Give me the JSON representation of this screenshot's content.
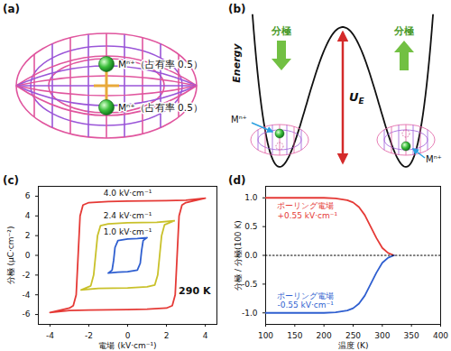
{
  "diagrams": [
    {
      "label": "(a)",
      "ion_labels": [
        "Mⁿ⁺（占有率 0.5）",
        "Mⁿ⁺（占有率 0.5）"
      ]
    },
    {
      "label": "(b)",
      "y_label": "Energy",
      "arrow_labels": [
        "分極",
        "分極"
      ],
      "barrier_label": "U",
      "barrier_subscript": "E",
      "ion_labels": [
        "Mⁿ⁺",
        "Mⁿ⁺"
      ]
    }
  ],
  "chart_data": [
    {
      "label": "(c)",
      "type": "line",
      "x_label": "電場 (kV·cm⁻¹)",
      "y_label": "分極 (μC·cm⁻²)",
      "xlim": [
        -4.6,
        4.6
      ],
      "ylim": [
        -7,
        7
      ],
      "xticks": [
        -4,
        -2,
        0,
        2,
        4
      ],
      "yticks": [
        -6,
        -4,
        -2,
        0,
        2,
        4,
        6
      ],
      "series": [
        {
          "name": "4.0 kV·cm⁻¹",
          "color": "#e53a36",
          "label_at": [
            0,
            6.3
          ],
          "x": [
            4,
            3,
            2,
            0,
            -1,
            -2,
            -2.3,
            -2.45,
            -2.55,
            -2.65,
            -2.8,
            -3,
            -4,
            -3,
            -2,
            0,
            1,
            2,
            2.3,
            2.45,
            2.55,
            2.65,
            2.8,
            3,
            4
          ],
          "values": [
            5.8,
            5.6,
            5.55,
            5.5,
            5.45,
            5.35,
            5.1,
            4.0,
            0,
            -4.0,
            -5.1,
            -5.35,
            -5.8,
            -5.6,
            -5.55,
            -5.5,
            -5.45,
            -5.35,
            -5.1,
            -4.0,
            0,
            4.0,
            5.1,
            5.35,
            5.8
          ]
        },
        {
          "name": "2.4 kV·cm⁻¹",
          "color": "#c9c12a",
          "label_at": [
            0,
            4.1
          ],
          "x": [
            2.4,
            1.5,
            0,
            -1,
            -1.4,
            -1.55,
            -1.65,
            -1.75,
            -1.9,
            -2.4,
            -1.5,
            0,
            1,
            1.4,
            1.55,
            1.65,
            1.75,
            1.9,
            2.4
          ],
          "values": [
            3.5,
            3.35,
            3.3,
            3.2,
            3.0,
            2.0,
            0,
            -2.0,
            -3.1,
            -3.5,
            -3.35,
            -3.3,
            -3.2,
            -3.0,
            -2.0,
            0,
            2.0,
            3.1,
            3.5
          ]
        },
        {
          "name": "1.0 kV·cm⁻¹",
          "color": "#2f5fd0",
          "label_at": [
            0,
            2.4
          ],
          "x": [
            1,
            0.5,
            0,
            -0.5,
            -0.65,
            -0.72,
            -0.8,
            -1,
            -0.5,
            0,
            0.5,
            0.65,
            0.72,
            0.8,
            1
          ],
          "values": [
            1.8,
            1.7,
            1.65,
            1.5,
            0.8,
            -0.5,
            -1.5,
            -1.8,
            -1.7,
            -1.65,
            -1.5,
            -0.8,
            0.5,
            1.5,
            1.8
          ]
        }
      ],
      "annotations": [
        {
          "text": "290 K",
          "x": 3.45,
          "y": -3.6
        }
      ]
    },
    {
      "label": "(d)",
      "type": "line",
      "x_label": "温度 (K)",
      "y_label": "分極 / 分極(100 K)",
      "xlim": [
        100,
        400
      ],
      "ylim": [
        -1.2,
        1.2
      ],
      "xticks": [
        100,
        150,
        200,
        250,
        300,
        350,
        400
      ],
      "yticks": [
        {
          "value": -1,
          "label": "-1.0"
        },
        {
          "value": -0.5,
          "label": "-0.5"
        },
        {
          "value": 0,
          "label": "0.0"
        },
        {
          "value": 0.5,
          "label": "0.5"
        },
        {
          "value": 1,
          "label": "1.0"
        }
      ],
      "series": [
        {
          "name": "ポーリング電場\n+0.55 kV·cm⁻¹",
          "color": "#e53a36",
          "label_at": [
            120,
            0.78
          ],
          "x": [
            100,
            150,
            200,
            220,
            240,
            250,
            260,
            270,
            280,
            290,
            300,
            310,
            320
          ],
          "values": [
            1,
            1,
            1,
            0.99,
            0.96,
            0.92,
            0.84,
            0.7,
            0.5,
            0.3,
            0.13,
            0.04,
            0
          ]
        },
        {
          "name": "ポーリング電場\n-0.55 kV·cm⁻¹",
          "color": "#2f5fd0",
          "label_at": [
            120,
            -0.78
          ],
          "x": [
            100,
            150,
            200,
            220,
            240,
            250,
            260,
            270,
            280,
            290,
            300,
            310,
            320
          ],
          "values": [
            -1,
            -1,
            -1,
            -0.99,
            -0.96,
            -0.92,
            -0.84,
            -0.7,
            -0.5,
            -0.3,
            -0.13,
            -0.04,
            0
          ]
        },
        {
          "color": "#000000",
          "line_style": "dotted",
          "x": [
            100,
            400
          ],
          "values": [
            0,
            0
          ]
        }
      ]
    }
  ]
}
